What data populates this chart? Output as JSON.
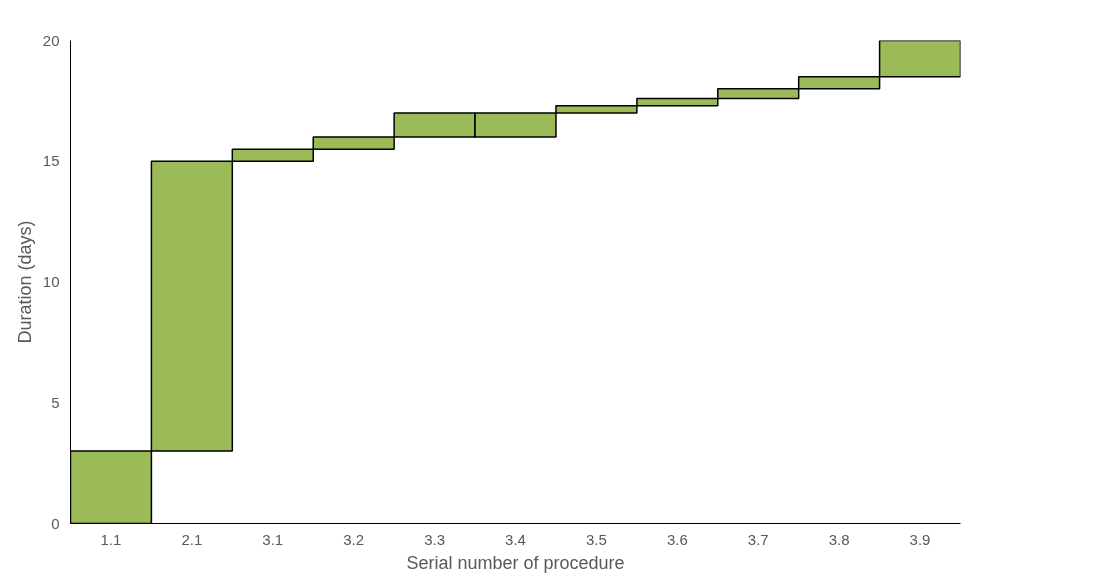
{
  "chart_data": {
    "type": "bar",
    "xlabel": "Serial number of procedure",
    "ylabel": "Duration (days)",
    "categories": [
      "1.1",
      "2.1",
      "3.1",
      "3.2",
      "3.3",
      "3.4",
      "3.5",
      "3.6",
      "3.7",
      "3.8",
      "3.9"
    ],
    "values": [
      3,
      12,
      0.5,
      0.5,
      1,
      1,
      0.3,
      0.3,
      0.4,
      0.5,
      1.5
    ],
    "base": [
      0,
      3,
      15,
      15.5,
      16,
      16,
      17,
      17.3,
      17.6,
      18,
      18.5
    ],
    "color": "#9bbb59",
    "ylim": [
      0,
      20
    ],
    "yticks": [
      0,
      5,
      10,
      15,
      20
    ],
    "grid": false
  }
}
